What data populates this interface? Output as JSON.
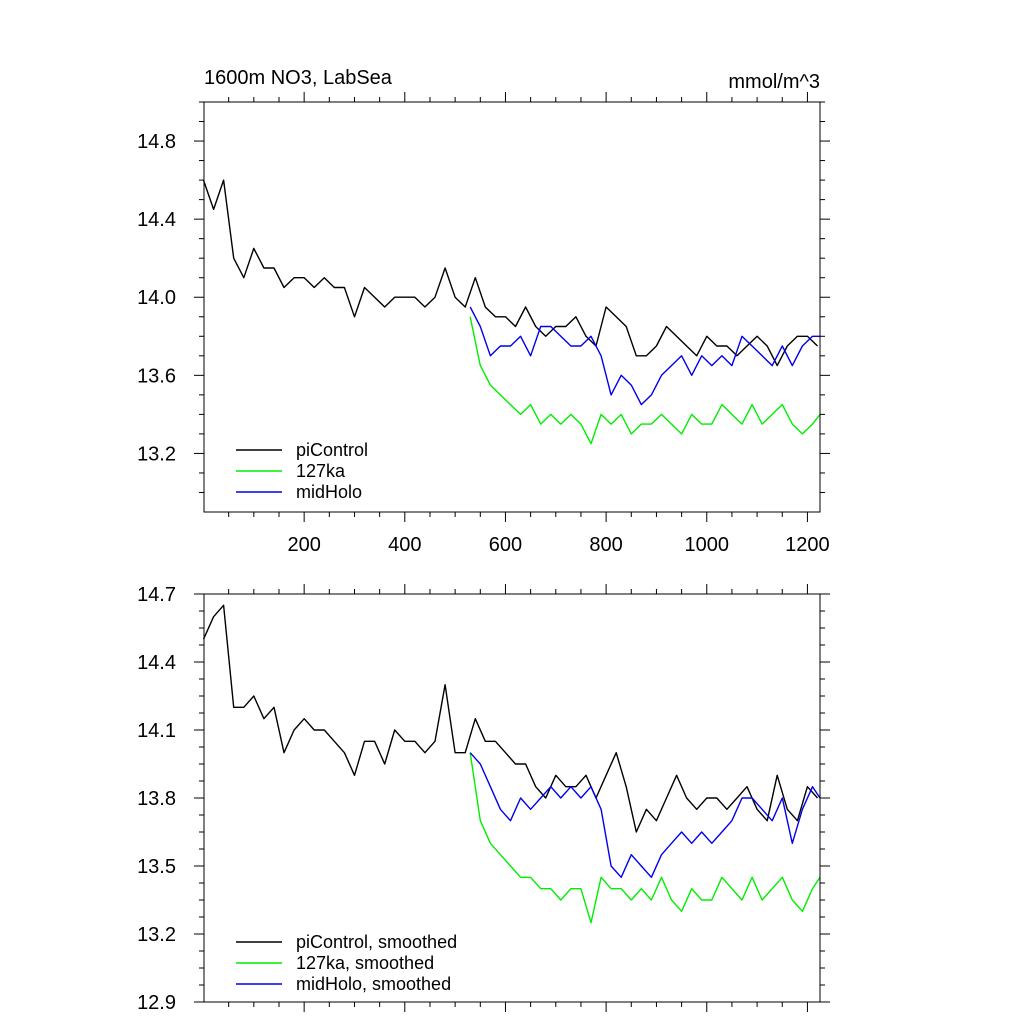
{
  "colors": {
    "piControl": "#000000",
    "127ka": "#00ee00",
    "midHolo": "#0000ee"
  },
  "chart_data": [
    {
      "type": "line",
      "title": "1600m NO3, LabSea",
      "units": "mmol/m^3",
      "xlim": [
        1,
        1225
      ],
      "ylim": [
        12.9,
        15.0
      ],
      "xticks": [
        200,
        400,
        600,
        800,
        1000,
        1200
      ],
      "yticks": [
        13.2,
        13.6,
        14.0,
        14.4,
        14.8
      ],
      "ytick_labels": [
        "13.2",
        "13.6",
        "14.0",
        "14.4",
        "14.8"
      ],
      "legend_position": "bottom-left",
      "series": [
        {
          "name": "piControl",
          "color": "#000000",
          "x": [
            0,
            20,
            40,
            60,
            80,
            100,
            120,
            140,
            160,
            180,
            200,
            220,
            240,
            260,
            280,
            300,
            320,
            340,
            360,
            380,
            400,
            420,
            440,
            460,
            480,
            500,
            520,
            540,
            560,
            580,
            600,
            620,
            640,
            660,
            680,
            700,
            720,
            740,
            760,
            780,
            800,
            820,
            840,
            860,
            880,
            900,
            920,
            940,
            960,
            980,
            1000,
            1020,
            1040,
            1060,
            1080,
            1100,
            1120,
            1140,
            1160,
            1180,
            1200,
            1220
          ],
          "y": [
            14.6,
            14.45,
            14.6,
            14.2,
            14.1,
            14.25,
            14.15,
            14.15,
            14.05,
            14.1,
            14.1,
            14.05,
            14.1,
            14.05,
            14.05,
            13.9,
            14.05,
            14.0,
            13.95,
            14.0,
            14.0,
            14.0,
            13.95,
            14.0,
            14.15,
            14.0,
            13.95,
            14.1,
            13.95,
            13.9,
            13.9,
            13.85,
            13.95,
            13.85,
            13.8,
            13.85,
            13.85,
            13.9,
            13.8,
            13.75,
            13.95,
            13.9,
            13.85,
            13.7,
            13.7,
            13.75,
            13.85,
            13.8,
            13.75,
            13.7,
            13.8,
            13.75,
            13.75,
            13.7,
            13.75,
            13.8,
            13.75,
            13.65,
            13.75,
            13.8,
            13.8,
            13.75
          ]
        },
        {
          "name": "127ka",
          "color": "#00ee00",
          "x": [
            530,
            550,
            570,
            590,
            610,
            630,
            650,
            670,
            690,
            710,
            730,
            750,
            770,
            790,
            810,
            830,
            850,
            870,
            890,
            910,
            930,
            950,
            970,
            990,
            1010,
            1030,
            1050,
            1070,
            1090,
            1110,
            1130,
            1150,
            1170,
            1190,
            1210,
            1225
          ],
          "y": [
            13.9,
            13.65,
            13.55,
            13.5,
            13.45,
            13.4,
            13.45,
            13.35,
            13.4,
            13.35,
            13.4,
            13.35,
            13.25,
            13.4,
            13.35,
            13.4,
            13.3,
            13.35,
            13.35,
            13.4,
            13.35,
            13.3,
            13.4,
            13.35,
            13.35,
            13.45,
            13.4,
            13.35,
            13.45,
            13.35,
            13.4,
            13.45,
            13.35,
            13.3,
            13.35,
            13.4
          ]
        },
        {
          "name": "midHolo",
          "color": "#0000ee",
          "x": [
            530,
            550,
            570,
            590,
            610,
            630,
            650,
            670,
            690,
            710,
            730,
            750,
            770,
            790,
            810,
            830,
            850,
            870,
            890,
            910,
            930,
            950,
            970,
            990,
            1010,
            1030,
            1050,
            1070,
            1090,
            1110,
            1130,
            1150,
            1170,
            1190,
            1210,
            1225
          ],
          "y": [
            13.95,
            13.85,
            13.7,
            13.75,
            13.75,
            13.8,
            13.7,
            13.85,
            13.85,
            13.8,
            13.75,
            13.75,
            13.8,
            13.7,
            13.5,
            13.6,
            13.55,
            13.45,
            13.5,
            13.6,
            13.65,
            13.7,
            13.6,
            13.7,
            13.65,
            13.7,
            13.65,
            13.8,
            13.75,
            13.7,
            13.65,
            13.75,
            13.65,
            13.75,
            13.8,
            13.8
          ]
        }
      ]
    },
    {
      "type": "line",
      "xlim": [
        1,
        1225
      ],
      "ylim": [
        12.9,
        14.7
      ],
      "xticks": [
        200,
        400,
        600,
        800,
        1000,
        1200
      ],
      "yticks": [
        12.9,
        13.2,
        13.5,
        13.8,
        14.1,
        14.4,
        14.7
      ],
      "ytick_labels": [
        "12.9",
        "13.2",
        "13.5",
        "13.8",
        "14.1",
        "14.4",
        "14.7"
      ],
      "legend_position": "bottom-left",
      "series": [
        {
          "name": "piControl, smoothed",
          "color": "#000000",
          "x": [
            0,
            20,
            40,
            60,
            80,
            100,
            120,
            140,
            160,
            180,
            200,
            220,
            240,
            260,
            280,
            300,
            320,
            340,
            360,
            380,
            400,
            420,
            440,
            460,
            480,
            500,
            520,
            540,
            560,
            580,
            600,
            620,
            640,
            660,
            680,
            700,
            720,
            740,
            760,
            780,
            800,
            820,
            840,
            860,
            880,
            900,
            920,
            940,
            960,
            980,
            1000,
            1020,
            1040,
            1060,
            1080,
            1100,
            1120,
            1140,
            1160,
            1180,
            1200,
            1220
          ],
          "y": [
            14.5,
            14.6,
            14.65,
            14.2,
            14.2,
            14.25,
            14.15,
            14.2,
            14.0,
            14.1,
            14.15,
            14.1,
            14.1,
            14.05,
            14.0,
            13.9,
            14.05,
            14.05,
            13.95,
            14.1,
            14.05,
            14.05,
            14.0,
            14.05,
            14.3,
            14.0,
            14.0,
            14.15,
            14.05,
            14.05,
            14.0,
            13.95,
            13.95,
            13.85,
            13.8,
            13.9,
            13.85,
            13.85,
            13.9,
            13.8,
            13.9,
            14.0,
            13.85,
            13.65,
            13.75,
            13.7,
            13.8,
            13.9,
            13.8,
            13.75,
            13.8,
            13.8,
            13.75,
            13.8,
            13.85,
            13.75,
            13.7,
            13.9,
            13.75,
            13.7,
            13.85,
            13.8
          ]
        },
        {
          "name": "127ka, smoothed",
          "color": "#00ee00",
          "x": [
            530,
            550,
            570,
            590,
            610,
            630,
            650,
            670,
            690,
            710,
            730,
            750,
            770,
            790,
            810,
            830,
            850,
            870,
            890,
            910,
            930,
            950,
            970,
            990,
            1010,
            1030,
            1050,
            1070,
            1090,
            1110,
            1130,
            1150,
            1170,
            1190,
            1210,
            1225
          ],
          "y": [
            14.0,
            13.7,
            13.6,
            13.55,
            13.5,
            13.45,
            13.45,
            13.4,
            13.4,
            13.35,
            13.4,
            13.4,
            13.25,
            13.45,
            13.4,
            13.4,
            13.35,
            13.4,
            13.35,
            13.45,
            13.35,
            13.3,
            13.4,
            13.35,
            13.35,
            13.45,
            13.4,
            13.35,
            13.45,
            13.35,
            13.4,
            13.45,
            13.35,
            13.3,
            13.4,
            13.45
          ]
        },
        {
          "name": "midHolo, smoothed",
          "color": "#0000ee",
          "x": [
            530,
            550,
            570,
            590,
            610,
            630,
            650,
            670,
            690,
            710,
            730,
            750,
            770,
            790,
            810,
            830,
            850,
            870,
            890,
            910,
            930,
            950,
            970,
            990,
            1010,
            1030,
            1050,
            1070,
            1090,
            1110,
            1130,
            1150,
            1170,
            1190,
            1210,
            1225
          ],
          "y": [
            14.0,
            13.95,
            13.85,
            13.75,
            13.7,
            13.8,
            13.75,
            13.8,
            13.85,
            13.8,
            13.85,
            13.8,
            13.85,
            13.75,
            13.5,
            13.45,
            13.55,
            13.5,
            13.45,
            13.55,
            13.6,
            13.65,
            13.6,
            13.65,
            13.6,
            13.65,
            13.7,
            13.8,
            13.8,
            13.75,
            13.7,
            13.8,
            13.6,
            13.75,
            13.85,
            13.8
          ]
        }
      ]
    }
  ]
}
